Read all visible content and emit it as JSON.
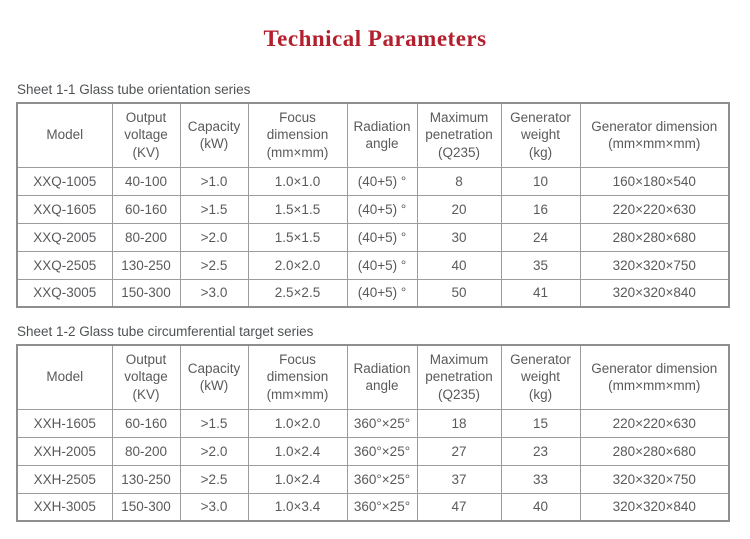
{
  "title": "Technical Parameters",
  "colors": {
    "title_red": "#b41f2e",
    "table_text_gray": "#585a5c",
    "border_gray": "#9c9c9c",
    "background": "#ffffff"
  },
  "tables": [
    {
      "caption": "Sheet 1-1 Glass tube orientation series",
      "headers": [
        "Model",
        "Output\nvoltage\n(KV)",
        "Capacity\n(kW)",
        "Focus\ndimension\n(mm×mm)",
        "Radiation\nangle",
        "Maximum\npenetration\n(Q235)",
        "Generator\nweight\n(kg)",
        "Generator dimension\n(mm×mm×mm)"
      ],
      "rows": [
        [
          "XXQ-1005",
          "40-100",
          ">1.0",
          "1.0×1.0",
          "(40+5) °",
          "8",
          "10",
          "160×180×540"
        ],
        [
          "XXQ-1605",
          "60-160",
          ">1.5",
          "1.5×1.5",
          "(40+5) °",
          "20",
          "16",
          "220×220×630"
        ],
        [
          "XXQ-2005",
          "80-200",
          ">2.0",
          "1.5×1.5",
          "(40+5) °",
          "30",
          "24",
          "280×280×680"
        ],
        [
          "XXQ-2505",
          "130-250",
          ">2.5",
          "2.0×2.0",
          "(40+5) °",
          "40",
          "35",
          "320×320×750"
        ],
        [
          "XXQ-3005",
          "150-300",
          ">3.0",
          "2.5×2.5",
          "(40+5) °",
          "50",
          "41",
          "320×320×840"
        ]
      ]
    },
    {
      "caption": "Sheet 1-2 Glass tube circumferential target series",
      "headers": [
        "Model",
        "Output\nvoltage\n(KV)",
        "Capacity\n(kW)",
        "Focus\ndimension\n(mm×mm)",
        "Radiation\nangle",
        "Maximum\npenetration\n(Q235)",
        "Generator\nweight\n(kg)",
        "Generator dimension\n(mm×mm×mm)"
      ],
      "rows": [
        [
          "XXH-1605",
          "60-160",
          ">1.5",
          "1.0×2.0",
          "360°×25°",
          "18",
          "15",
          "220×220×630"
        ],
        [
          "XXH-2005",
          "80-200",
          ">2.0",
          "1.0×2.4",
          "360°×25°",
          "27",
          "23",
          "280×280×680"
        ],
        [
          "XXH-2505",
          "130-250",
          ">2.5",
          "1.0×2.4",
          "360°×25°",
          "37",
          "33",
          "320×320×750"
        ],
        [
          "XXH-3005",
          "150-300",
          ">3.0",
          "1.0×3.4",
          "360°×25°",
          "47",
          "40",
          "320×320×840"
        ]
      ]
    }
  ]
}
